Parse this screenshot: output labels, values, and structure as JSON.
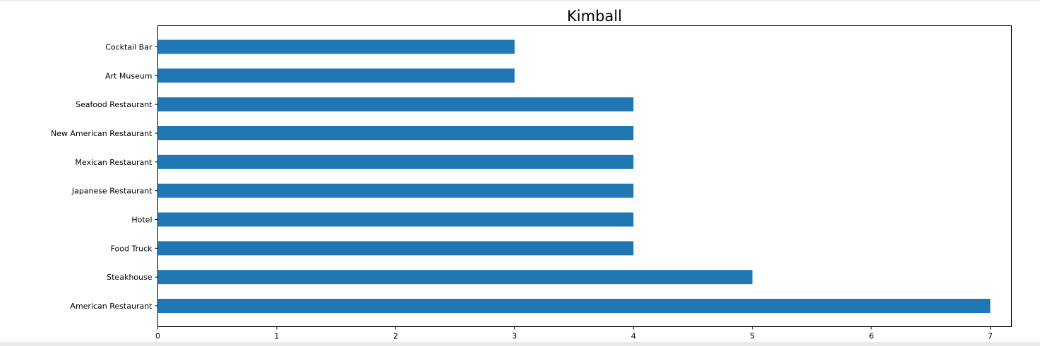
{
  "chart_data": {
    "type": "bar",
    "orientation": "horizontal",
    "title": "Kimball",
    "xlabel": "",
    "ylabel": "",
    "categories": [
      "American Restaurant",
      "Steakhouse",
      "Food Truck",
      "Hotel",
      "Japanese Restaurant",
      "Mexican Restaurant",
      "New American Restaurant",
      "Seafood Restaurant",
      "Art Museum",
      "Cocktail Bar"
    ],
    "values": [
      7,
      5,
      4,
      4,
      4,
      4,
      4,
      4,
      3,
      3
    ],
    "xticks": [
      "0",
      "1",
      "2",
      "3",
      "4",
      "5",
      "6",
      "7"
    ],
    "xlim": [
      0,
      7.35
    ],
    "grid": false,
    "legend": "none",
    "bar_color": "#1f77b4"
  }
}
